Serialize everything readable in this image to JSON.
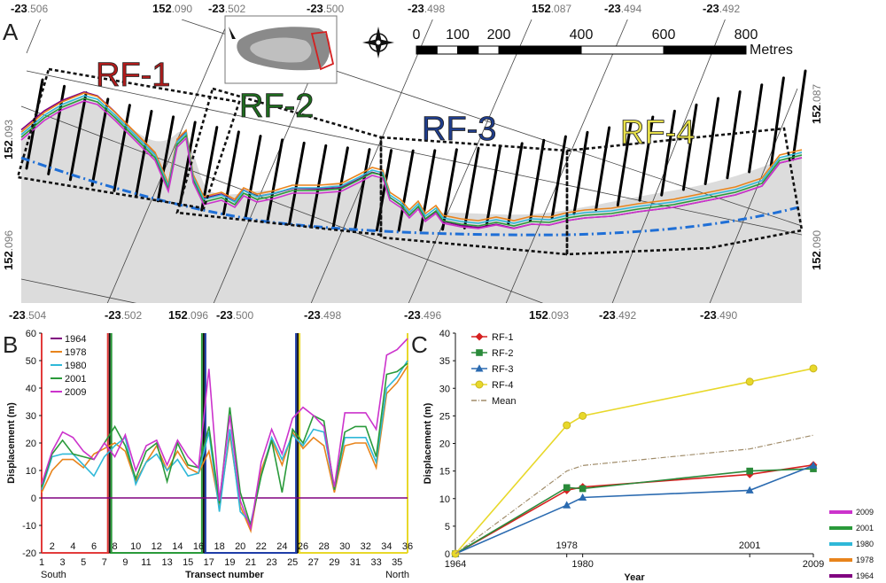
{
  "panel_a": {
    "letter": "A",
    "coords_top": [
      {
        "bold": "-23",
        "grey": ".506"
      },
      {
        "bold": "152",
        "grey": ".090"
      },
      {
        "bold": "-23",
        "grey": ".502"
      },
      {
        "bold": "-23",
        "grey": ".500"
      },
      {
        "bold": "-23",
        "grey": ".498"
      },
      {
        "bold": "152",
        "grey": ".087"
      },
      {
        "bold": "-23",
        "grey": ".494"
      },
      {
        "bold": "-23",
        "grey": ".492"
      }
    ],
    "coords_bottom": [
      {
        "bold": "-23",
        "grey": ".504"
      },
      {
        "bold": "-23",
        "grey": ".502"
      },
      {
        "bold": "152",
        "grey": ".096"
      },
      {
        "bold": "-23",
        "grey": ".500"
      },
      {
        "bold": "-23",
        "grey": ".498"
      },
      {
        "bold": "-23",
        "grey": ".496"
      },
      {
        "bold": "152",
        "grey": ".093"
      },
      {
        "bold": "-23",
        "grey": ".492"
      },
      {
        "bold": "-23",
        "grey": ".490"
      }
    ],
    "coords_left": [
      {
        "bold": "152",
        "grey": ".093"
      },
      {
        "bold": "152",
        "grey": ".096"
      }
    ],
    "coords_right": [
      {
        "bold": "152",
        "grey": ".087"
      },
      {
        "bold": "152",
        "grey": ".090"
      }
    ],
    "scale_labels": [
      "0",
      "100",
      "200",
      "400",
      "600",
      "800"
    ],
    "scale_unit": "Metres",
    "regions": [
      {
        "label": "RF-1",
        "color": "#b01c1c"
      },
      {
        "label": "RF-2",
        "color": "#1e6b1e"
      },
      {
        "label": "RF-3",
        "color": "#1f3d8c"
      },
      {
        "label": "RF-4",
        "color": "#e8e14a"
      }
    ],
    "shoreline_colors": [
      "#800080",
      "#e8841c",
      "#2fb8d8",
      "#2a9a3a",
      "#cc33cc"
    ],
    "baseline_color": "#1f6fd6"
  },
  "chart_data": [
    {
      "panel": "B",
      "type": "line",
      "ylabel": "Displacement (m)",
      "xlabel": "Transect number",
      "xlabel_left": "South",
      "xlabel_right": "North",
      "x": [
        1,
        2,
        3,
        4,
        5,
        6,
        7,
        8,
        9,
        10,
        11,
        12,
        13,
        14,
        15,
        16,
        17,
        18,
        19,
        20,
        21,
        22,
        23,
        24,
        25,
        26,
        27,
        28,
        29,
        30,
        31,
        32,
        33,
        34,
        35,
        36
      ],
      "xticks_bottom": [
        1,
        3,
        5,
        7,
        9,
        11,
        13,
        15,
        17,
        19,
        21,
        23,
        25,
        27,
        29,
        31,
        33,
        35
      ],
      "xticks_top": [
        2,
        4,
        6,
        8,
        10,
        12,
        14,
        16,
        18,
        20,
        22,
        24,
        26,
        28,
        30,
        32,
        34,
        36
      ],
      "ylim": [
        -20,
        60
      ],
      "yticks": [
        -20,
        -10,
        0,
        10,
        20,
        30,
        40,
        50,
        60
      ],
      "series": [
        {
          "name": "1964",
          "color": "#800080",
          "values": [
            0,
            0,
            0,
            0,
            0,
            0,
            0,
            0,
            0,
            0,
            0,
            0,
            0,
            0,
            0,
            0,
            0,
            0,
            0,
            0,
            0,
            0,
            0,
            0,
            0,
            0,
            0,
            0,
            0,
            0,
            0,
            0,
            0,
            0,
            0,
            0
          ]
        },
        {
          "name": "1978",
          "color": "#e8841c",
          "values": [
            2,
            10,
            14,
            14,
            11,
            16,
            18,
            20,
            17,
            6,
            13,
            19,
            10,
            17,
            11,
            9,
            17,
            -3,
            23,
            -3,
            -12,
            10,
            21,
            12,
            24,
            18,
            22,
            19,
            2,
            19,
            20,
            20,
            11,
            38,
            42,
            48
          ]
        },
        {
          "name": "1980",
          "color": "#2fb8d8",
          "values": [
            3,
            15,
            16,
            16,
            12,
            8,
            15,
            19,
            22,
            5,
            13,
            16,
            10,
            14,
            8,
            9,
            24,
            -5,
            25,
            -5,
            -9,
            8,
            22,
            14,
            23,
            19,
            25,
            24,
            3,
            22,
            22,
            22,
            13,
            40,
            44,
            50
          ]
        },
        {
          "name": "2001",
          "color": "#2a9a3a",
          "values": [
            4,
            16,
            21,
            16,
            15,
            14,
            20,
            26,
            19,
            7,
            17,
            20,
            6,
            20,
            12,
            11,
            26,
            -2,
            33,
            2,
            -10,
            8,
            21,
            2,
            25,
            20,
            30,
            28,
            3,
            24,
            26,
            26,
            15,
            45,
            46,
            49
          ]
        },
        {
          "name": "2009",
          "color": "#cc33cc",
          "values": [
            5,
            17,
            24,
            22,
            17,
            14,
            20,
            15,
            23,
            10,
            19,
            21,
            12,
            21,
            15,
            11,
            47,
            -1,
            30,
            -1,
            -11,
            13,
            25,
            16,
            29,
            33,
            30,
            26,
            4,
            31,
            31,
            31,
            25,
            52,
            54,
            58
          ]
        }
      ],
      "regions": [
        {
          "start": 1,
          "end": 7.5,
          "color": "#e23b3b"
        },
        {
          "start": 7.5,
          "end": 16.5,
          "color": "#2a9a3a"
        },
        {
          "start": 16.5,
          "end": 25.5,
          "color": "#1f3da8"
        },
        {
          "start": 25.5,
          "end": 36,
          "color": "#e8d82a"
        }
      ]
    },
    {
      "panel": "C",
      "type": "line",
      "ylabel": "Displacement (m)",
      "xlabel": "Year",
      "x": [
        1964,
        1978,
        1980,
        2001,
        2009
      ],
      "xlim": [
        1964,
        2009
      ],
      "ylim": [
        0,
        40
      ],
      "yticks": [
        0,
        5,
        10,
        15,
        20,
        25,
        30,
        35,
        40
      ],
      "xticks_bottom": [
        "1964",
        "1980",
        "2009"
      ],
      "xticks_top": [
        "1978",
        "2001"
      ],
      "series": [
        {
          "name": "RF-1",
          "color": "#d62020",
          "marker": "diamond",
          "values": [
            0,
            11.5,
            12.1,
            14.4,
            16.1
          ]
        },
        {
          "name": "RF-2",
          "color": "#2a8a3a",
          "marker": "square",
          "values": [
            0,
            12.0,
            11.8,
            15.0,
            15.4
          ]
        },
        {
          "name": "RF-3",
          "color": "#2a6ab0",
          "marker": "triangle",
          "values": [
            0,
            8.8,
            10.2,
            11.5,
            16.0
          ]
        },
        {
          "name": "RF-4",
          "color": "#e8d82a",
          "marker": "circle",
          "values": [
            0,
            23.3,
            25.0,
            31.2,
            33.6
          ]
        },
        {
          "name": "Mean",
          "color": "#a08c6a",
          "marker": "none",
          "dash": true,
          "values": [
            0,
            15.0,
            16.0,
            19.0,
            21.5
          ]
        }
      ],
      "side_legend": [
        {
          "name": "2009",
          "color": "#cc33cc"
        },
        {
          "name": "2001",
          "color": "#2a9a3a"
        },
        {
          "name": "1980",
          "color": "#2fb8d8"
        },
        {
          "name": "1978",
          "color": "#e8841c"
        },
        {
          "name": "1964",
          "color": "#800080"
        }
      ]
    }
  ],
  "letters": {
    "b": "B",
    "c": "C"
  }
}
